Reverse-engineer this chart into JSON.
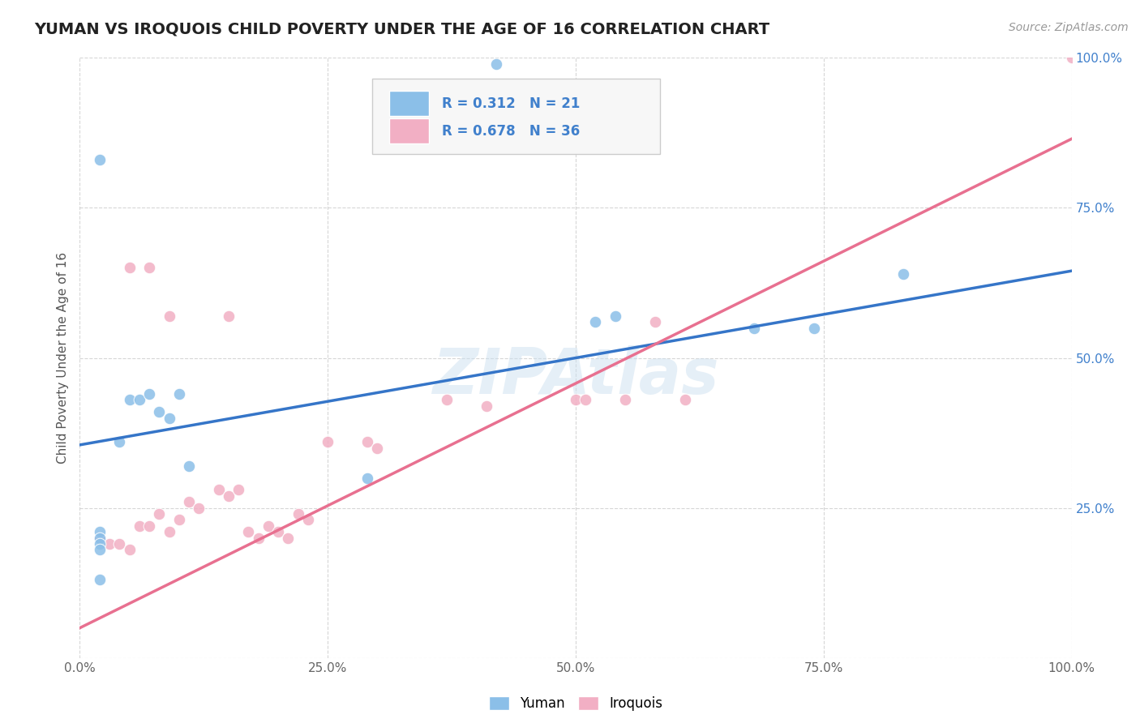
{
  "title": "YUMAN VS IROQUOIS CHILD POVERTY UNDER THE AGE OF 16 CORRELATION CHART",
  "source": "Source: ZipAtlas.com",
  "ylabel": "Child Poverty Under the Age of 16",
  "yuman_R": 0.312,
  "yuman_N": 21,
  "iroquois_R": 0.678,
  "iroquois_N": 36,
  "watermark": "ZIPAtlas",
  "yuman_color": "#8bbfe8",
  "iroquois_color": "#f2afc4",
  "yuman_line_color": "#3575c8",
  "iroquois_line_color": "#e87090",
  "background_color": "#ffffff",
  "grid_color": "#cccccc",
  "right_label_color": "#4080cc",
  "yuman_x": [
    0.02,
    0.02,
    0.02,
    0.02,
    0.02,
    0.04,
    0.05,
    0.06,
    0.07,
    0.08,
    0.09,
    0.1,
    0.11,
    0.29,
    0.42,
    0.52,
    0.54,
    0.68,
    0.74,
    0.83,
    0.02
  ],
  "yuman_y": [
    0.21,
    0.2,
    0.19,
    0.18,
    0.13,
    0.36,
    0.43,
    0.43,
    0.44,
    0.41,
    0.4,
    0.44,
    0.32,
    0.3,
    0.99,
    0.56,
    0.57,
    0.55,
    0.55,
    0.64,
    0.83
  ],
  "iroquois_x": [
    0.02,
    0.03,
    0.04,
    0.05,
    0.06,
    0.07,
    0.08,
    0.09,
    0.1,
    0.11,
    0.12,
    0.14,
    0.15,
    0.16,
    0.17,
    0.18,
    0.19,
    0.2,
    0.21,
    0.22,
    0.23,
    0.25,
    0.29,
    0.3,
    0.37,
    0.41,
    0.5,
    0.51,
    0.55,
    0.58,
    0.61,
    0.05,
    0.07,
    0.09,
    0.15,
    1.0
  ],
  "iroquois_y": [
    0.2,
    0.19,
    0.19,
    0.18,
    0.22,
    0.22,
    0.24,
    0.21,
    0.23,
    0.26,
    0.25,
    0.28,
    0.27,
    0.28,
    0.21,
    0.2,
    0.22,
    0.21,
    0.2,
    0.24,
    0.23,
    0.36,
    0.36,
    0.35,
    0.43,
    0.42,
    0.43,
    0.43,
    0.43,
    0.56,
    0.43,
    0.65,
    0.65,
    0.57,
    0.57,
    1.0
  ],
  "yuman_line_x0": 0.0,
  "yuman_line_y0": 0.355,
  "yuman_line_x1": 1.0,
  "yuman_line_y1": 0.645,
  "iroquois_line_x0": 0.0,
  "iroquois_line_y0": 0.05,
  "iroquois_line_x1": 1.0,
  "iroquois_line_y1": 0.865,
  "xlim": [
    0.0,
    1.0
  ],
  "ylim": [
    0.0,
    1.0
  ],
  "xticks": [
    0.0,
    0.25,
    0.5,
    0.75,
    1.0
  ],
  "yticks": [
    0.0,
    0.25,
    0.5,
    0.75,
    1.0
  ],
  "ytick_labels_right": [
    "",
    "25.0%",
    "50.0%",
    "75.0%",
    "100.0%"
  ],
  "xtick_labels": [
    "0.0%",
    "25.0%",
    "50.0%",
    "75.0%",
    "100.0%"
  ]
}
